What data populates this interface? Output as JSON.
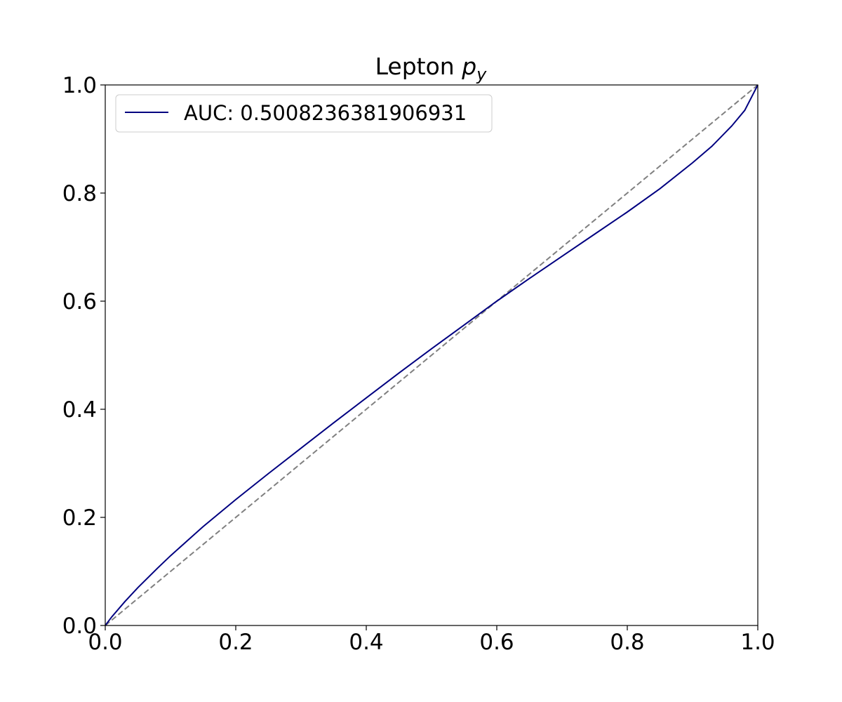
{
  "chart_data": {
    "type": "line",
    "title_main": "Lepton ",
    "title_var": "p",
    "title_sub": "y",
    "xlabel": "",
    "ylabel": "",
    "xlim": [
      0.0,
      1.0
    ],
    "ylim": [
      0.0,
      1.0
    ],
    "xticks": [
      "0.0",
      "0.2",
      "0.4",
      "0.6",
      "0.8",
      "1.0"
    ],
    "yticks": [
      "0.0",
      "0.2",
      "0.4",
      "0.6",
      "0.8",
      "1.0"
    ],
    "grid": false,
    "legend_position": "upper-left",
    "series": [
      {
        "name": "AUC: 0.5008236381906931",
        "color": "#000080",
        "style": "solid",
        "x": [
          0.0,
          0.01,
          0.03,
          0.05,
          0.08,
          0.1,
          0.15,
          0.2,
          0.25,
          0.3,
          0.35,
          0.4,
          0.45,
          0.5,
          0.55,
          0.6,
          0.65,
          0.7,
          0.75,
          0.8,
          0.85,
          0.9,
          0.93,
          0.96,
          0.98,
          1.0
        ],
        "y": [
          0.0,
          0.016,
          0.044,
          0.07,
          0.106,
          0.129,
          0.183,
          0.233,
          0.281,
          0.328,
          0.375,
          0.421,
          0.467,
          0.512,
          0.556,
          0.6,
          0.642,
          0.683,
          0.724,
          0.765,
          0.808,
          0.856,
          0.887,
          0.924,
          0.953,
          1.0
        ]
      },
      {
        "name": "",
        "color": "#808080",
        "style": "dashed",
        "x": [
          0.0,
          1.0
        ],
        "y": [
          0.0,
          1.0
        ]
      }
    ]
  }
}
